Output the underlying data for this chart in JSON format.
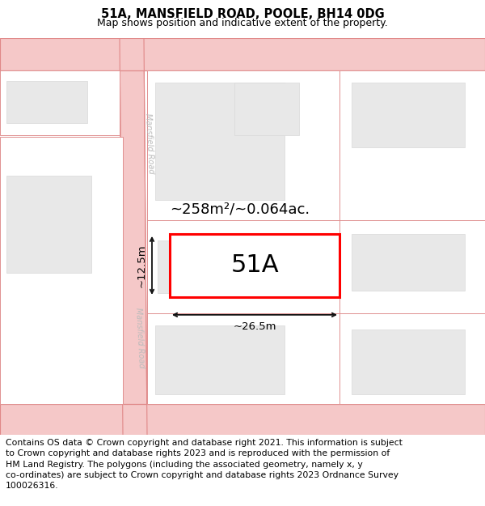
{
  "title": "51A, MANSFIELD ROAD, POOLE, BH14 0DG",
  "subtitle": "Map shows position and indicative extent of the property.",
  "footer": "Contains OS data © Crown copyright and database right 2021. This information is subject\nto Crown copyright and database rights 2023 and is reproduced with the permission of\nHM Land Registry. The polygons (including the associated geometry, namely x, y\nco-ordinates) are subject to Crown copyright and database rights 2023 Ordnance Survey\n100026316.",
  "background_color": "#ffffff",
  "road_fill": "#f5c8c8",
  "road_edge": "#e08888",
  "block_fill": "#ffffff",
  "block_edge": "#e09090",
  "building_fill": "#e8e8e8",
  "building_edge": "#d8d8d8",
  "highlight_color": "#ff0000",
  "dim_color": "#111111",
  "road_label": "Mansfield Road",
  "area_label": "~258m²/~0.064ac.",
  "property_label": "51A",
  "width_label": "~26.5m",
  "height_label": "~12.5m",
  "title_fontsize": 10.5,
  "subtitle_fontsize": 9,
  "footer_fontsize": 7.8,
  "road_label_color": "#bbbbbb",
  "road_label_fontsize": 7
}
